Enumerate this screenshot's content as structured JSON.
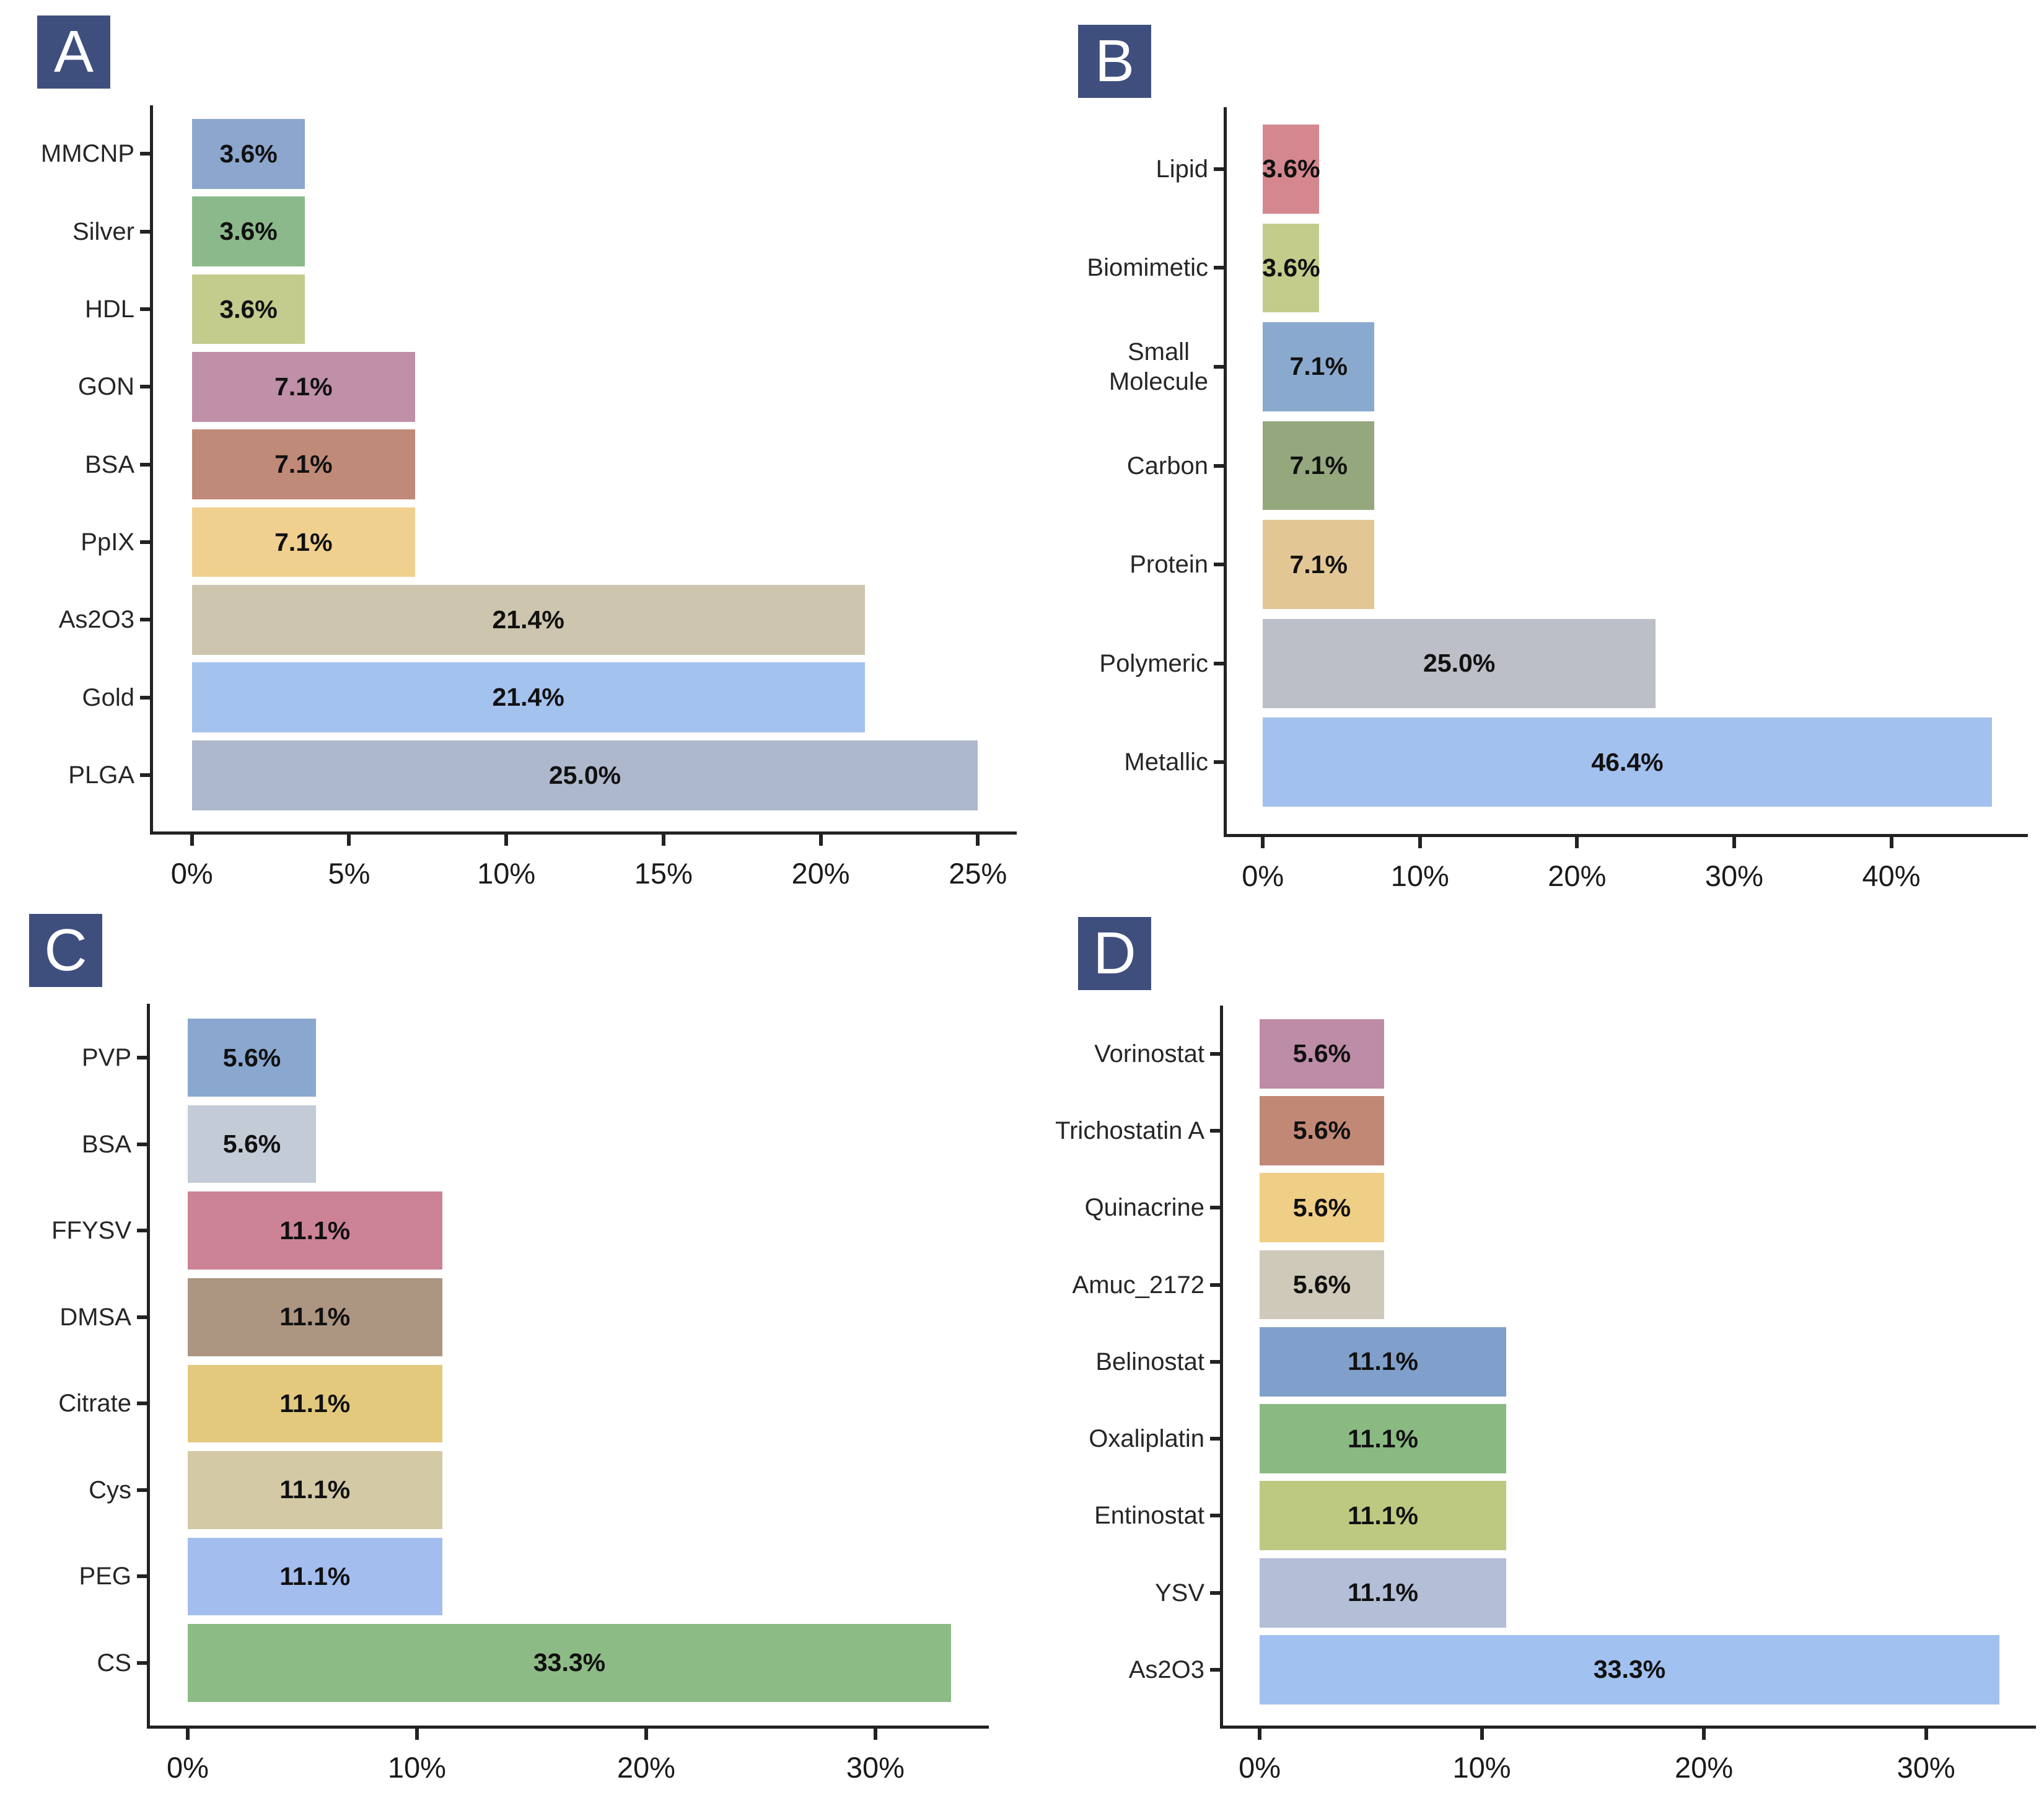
{
  "style": {
    "background": "#ffffff",
    "panel_label_bg": "#3e4f7e",
    "panel_label_text": "#ffffff",
    "axis_color": "#222222",
    "value_text_color": "#111111",
    "category_text_color": "#262626"
  },
  "chart_data": [
    {
      "panel": "A",
      "type": "bar",
      "orientation": "horizontal",
      "categories": [
        "MMCNP",
        "Silver",
        "HDL",
        "GON",
        "BSA",
        "PpIX",
        "As2O3",
        "Gold",
        "PLGA"
      ],
      "values": [
        3.6,
        3.6,
        3.6,
        7.1,
        7.1,
        7.1,
        21.4,
        21.4,
        25.0
      ],
      "value_labels": [
        "3.6%",
        "3.6%",
        "3.6%",
        "7.1%",
        "7.1%",
        "7.1%",
        "21.4%",
        "21.4%",
        "25.0%"
      ],
      "bar_colors": [
        "#8ca6cd",
        "#8cb98b",
        "#c3cb8d",
        "#bf90a8",
        "#c08a78",
        "#f0d08f",
        "#cdc5ae",
        "#a3c2ee",
        "#aeb8cc"
      ],
      "x_tick_labels": [
        "0%",
        "5%",
        "10%",
        "15%",
        "20%",
        "25%"
      ],
      "x_tick_values": [
        0,
        5,
        10,
        15,
        20,
        25
      ],
      "xlim": [
        0,
        25.0
      ],
      "grid": false,
      "legend": false
    },
    {
      "panel": "B",
      "type": "bar",
      "orientation": "horizontal",
      "categories": [
        "Lipid",
        "Biomimetic",
        "Small Molecule",
        "Carbon",
        "Protein",
        "Polymeric",
        "Metallic"
      ],
      "categories_display": [
        [
          "Lipid"
        ],
        [
          "Biomimetic"
        ],
        [
          "Small",
          "Molecule"
        ],
        [
          "Carbon"
        ],
        [
          "Protein"
        ],
        [
          "Polymeric"
        ],
        [
          "Metallic"
        ]
      ],
      "values": [
        3.6,
        3.6,
        7.1,
        7.1,
        7.1,
        25.0,
        46.4
      ],
      "value_labels": [
        "3.6%",
        "3.6%",
        "7.1%",
        "7.1%",
        "7.1%",
        "25.0%",
        "46.4%"
      ],
      "bar_colors": [
        "#d5878f",
        "#c3cc8b",
        "#8aa9ce",
        "#95a77d",
        "#e2c795",
        "#bcbfc7",
        "#a3c1ef"
      ],
      "x_tick_labels": [
        "0%",
        "10%",
        "20%",
        "30%",
        "40%"
      ],
      "x_tick_values": [
        0,
        10,
        20,
        30,
        40
      ],
      "xlim": [
        0,
        46.4
      ],
      "grid": false,
      "legend": false
    },
    {
      "panel": "C",
      "type": "bar",
      "orientation": "horizontal",
      "categories": [
        "PVP",
        "BSA",
        "FFYSV",
        "DMSA",
        "Citrate",
        "Cys",
        "PEG",
        "CS"
      ],
      "values": [
        5.6,
        5.6,
        11.1,
        11.1,
        11.1,
        11.1,
        11.1,
        33.3
      ],
      "value_labels": [
        "5.6%",
        "5.6%",
        "11.1%",
        "11.1%",
        "11.1%",
        "11.1%",
        "11.1%",
        "33.3%"
      ],
      "bar_colors": [
        "#8aa8cf",
        "#c3cbd7",
        "#cc8396",
        "#ac9581",
        "#e3c97e",
        "#d4c9a5",
        "#a3bdee",
        "#8dbb85"
      ],
      "x_tick_labels": [
        "0%",
        "10%",
        "20%",
        "30%"
      ],
      "x_tick_values": [
        0,
        10,
        20,
        30
      ],
      "xlim": [
        0,
        33.3
      ],
      "grid": false,
      "legend": false
    },
    {
      "panel": "D",
      "type": "bar",
      "orientation": "horizontal",
      "categories": [
        "Vorinostat",
        "Trichostatin A",
        "Quinacrine",
        "Amuc_2172",
        "Belinostat",
        "Oxaliplatin",
        "Entinostat",
        "YSV",
        "As2O3"
      ],
      "values": [
        5.6,
        5.6,
        5.6,
        5.6,
        11.1,
        11.1,
        11.1,
        11.1,
        33.3
      ],
      "value_labels": [
        "5.6%",
        "5.6%",
        "5.6%",
        "5.6%",
        "11.1%",
        "11.1%",
        "11.1%",
        "11.1%",
        "33.3%"
      ],
      "bar_colors": [
        "#bd8ca7",
        "#c28876",
        "#efce85",
        "#cfc9b9",
        "#80a0cb",
        "#8aba82",
        "#bdc980",
        "#b3bed7",
        "#a1c1f0"
      ],
      "x_tick_labels": [
        "0%",
        "10%",
        "20%",
        "30%"
      ],
      "x_tick_values": [
        0,
        10,
        20,
        30
      ],
      "xlim": [
        0,
        33.3
      ],
      "grid": false,
      "legend": false
    }
  ]
}
